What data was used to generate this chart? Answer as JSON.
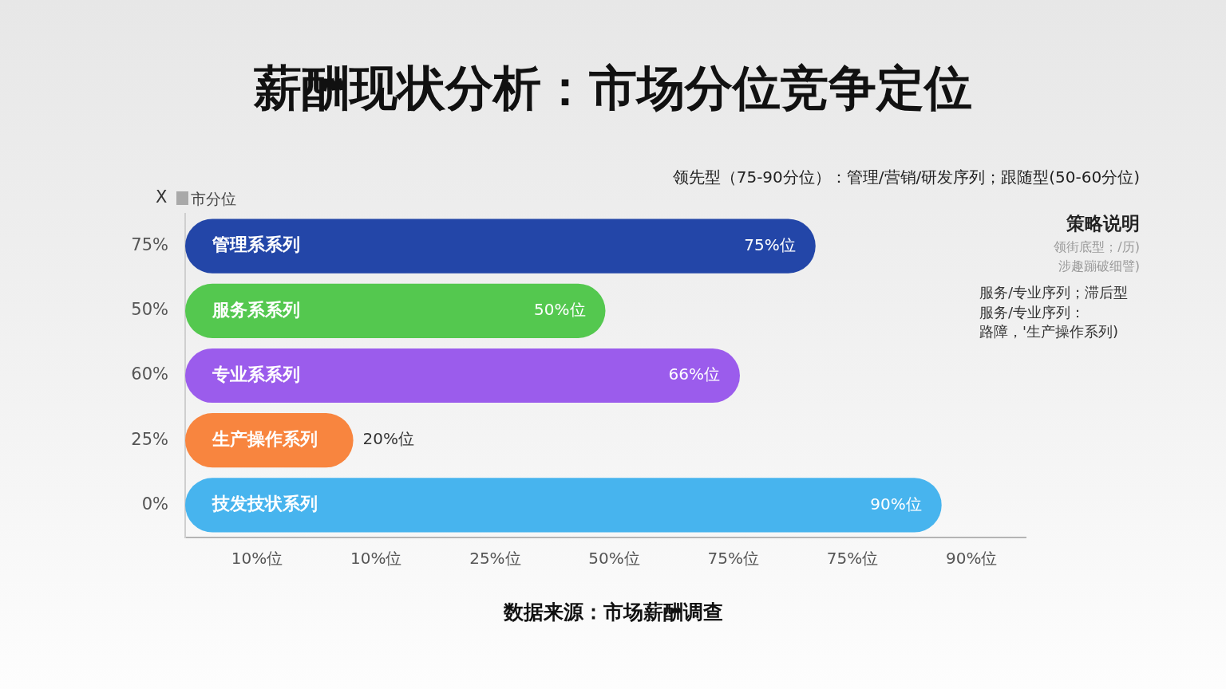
{
  "chart_data": {
    "type": "bar",
    "orientation": "horizontal",
    "stacked": true,
    "title": "薪酬现状分析：市场分位竞争定位",
    "subtitle": "领先型（75-90分位）：管理/营销/研发序列；跟随型(50-60分位)",
    "ylabel": "X",
    "annotations": [
      "市分位",
      "策略说明",
      "领街底型；/历)",
      "涉趣蹦破细譬)",
      "服务/专业序列；滞后型",
      "服务/专业序列：",
      "路障，'生产操作系列)",
      "10%位",
      "10%位",
      "25%位",
      "50%位",
      "75%位",
      "75%位",
      "90%位",
      "数据来源：市场薪酬调查"
    ],
    "categories": [
      "75%",
      "50%",
      "60%",
      "25%",
      "0%"
    ],
    "series": [
      {
        "name": "管理系系列",
        "color": "#2346a8",
        "values": [
          75,
          null,
          null,
          null,
          null
        ],
        "value_labels": [
          "75%位",
          null,
          null,
          null,
          null
        ]
      },
      {
        "name": "服务系系列",
        "color": "#54c84f",
        "values": [
          null,
          50,
          null,
          null,
          null
        ],
        "value_labels": [
          null,
          "50%位",
          null,
          null,
          null
        ]
      },
      {
        "name": "专业系系列",
        "color": "#9b5cec",
        "values": [
          null,
          null,
          66,
          null,
          null
        ],
        "value_labels": [
          null,
          null,
          "66%位",
          null,
          null
        ]
      },
      {
        "name": "生产操作系列",
        "color": "#f8853f",
        "values": [
          null,
          null,
          null,
          20,
          null
        ],
        "value_labels": [
          null,
          null,
          null,
          "20%位",
          null
        ]
      },
      {
        "name": "技发技状系列",
        "color": "#47b4ee",
        "values": [
          null,
          null,
          null,
          null,
          90
        ],
        "value_labels": [
          null,
          null,
          null,
          null,
          "90%位"
        ]
      }
    ],
    "xlim": [
      0,
      100
    ]
  }
}
